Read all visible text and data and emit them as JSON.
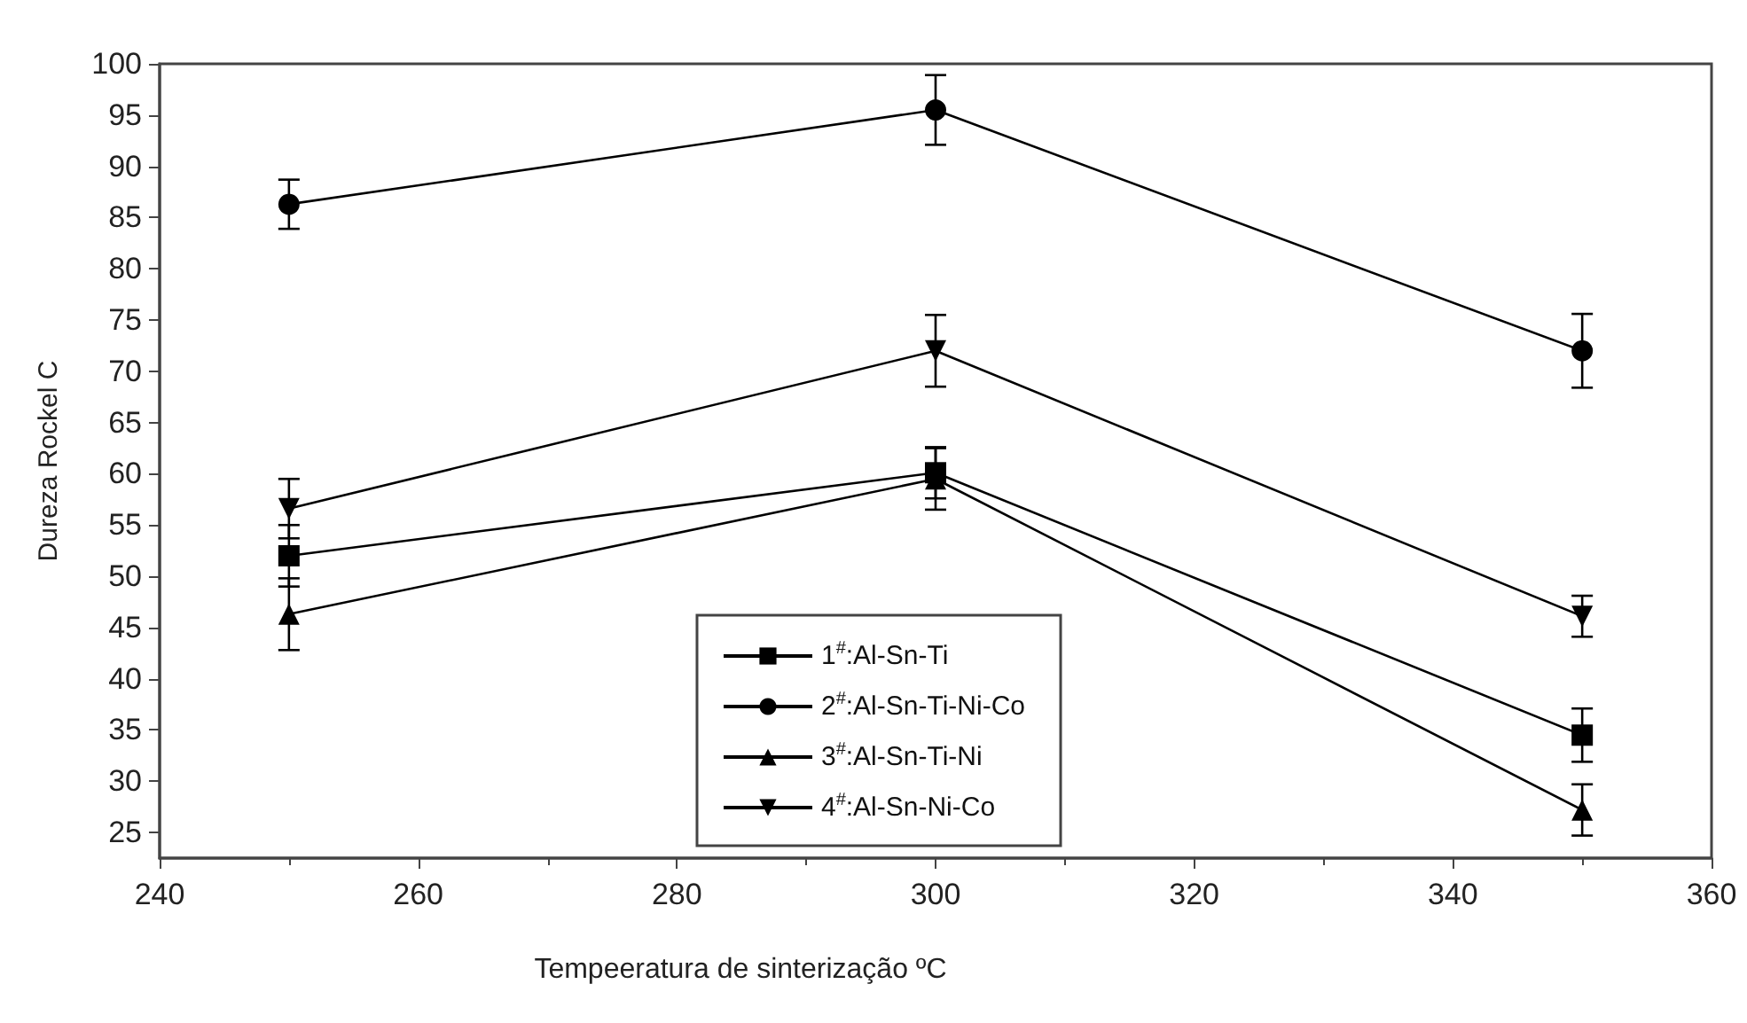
{
  "chart_data": {
    "type": "line",
    "xlabel": "Tempeeratura de sinterização ºC",
    "ylabel": "Dureza Rockel C",
    "x": [
      250,
      300,
      350
    ],
    "series": [
      {
        "name": "1$^{#}$:Al-Sn-Ti",
        "color": "#000000",
        "marker": "square",
        "values": [
          52,
          60.1,
          34.5
        ],
        "errors": [
          3,
          2.5,
          2.6
        ]
      },
      {
        "name": "2$^{#}$:Al-Sn-Ti-Ni-Co",
        "color": "#000000",
        "marker": "circle",
        "values": [
          86.3,
          95.5,
          72
        ],
        "errors": [
          2.4,
          3.4,
          3.6
        ]
      },
      {
        "name": "3$^{#}$:Al-Sn-Ti-Ni",
        "color": "#000000",
        "marker": "triangle",
        "values": [
          46.3,
          59.5,
          27.2
        ],
        "errors": [
          3.5,
          3,
          2.5
        ]
      },
      {
        "name": "4$^{#}$:Al-Sn-Ni-Co",
        "color": "#000000",
        "marker": "triangle_down",
        "values": [
          56.6,
          72,
          46.1
        ],
        "errors": [
          2.9,
          3.5,
          2
        ]
      }
    ],
    "xlim": [
      240,
      360
    ],
    "xticks": [
      240,
      260,
      280,
      300,
      320,
      340,
      360
    ],
    "ylim": [
      22.5,
      100
    ],
    "yticks": [
      25,
      30,
      35,
      40,
      45,
      50,
      55,
      60,
      65,
      70,
      75,
      80,
      85,
      90,
      95,
      100
    ],
    "grid": false,
    "legend": "bottom",
    "line_style": "solid"
  }
}
